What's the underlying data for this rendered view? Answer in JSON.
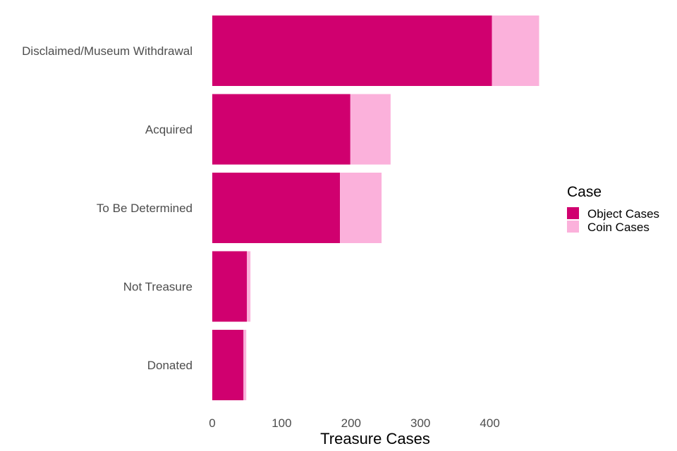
{
  "chart_data": {
    "type": "bar",
    "orientation": "horizontal",
    "stacked": true,
    "categories": [
      "Disclaimed/Museum Withdrawal",
      "Acquired",
      "To Be Determined",
      "Not Treasure",
      "Donated"
    ],
    "series": [
      {
        "name": "Object Cases",
        "color": "#D0006F",
        "values": [
          403,
          199,
          184,
          50,
          45
        ]
      },
      {
        "name": "Coin Cases",
        "color": "#FBB1DB",
        "values": [
          68,
          58,
          60,
          5,
          4
        ]
      }
    ],
    "xlabel": "Treasure Cases",
    "ylabel": "",
    "xlim": [
      0,
      471
    ],
    "xticks": [
      0,
      100,
      200,
      300,
      400
    ],
    "grid": false,
    "legend": {
      "title": "Case",
      "position": "right"
    }
  }
}
